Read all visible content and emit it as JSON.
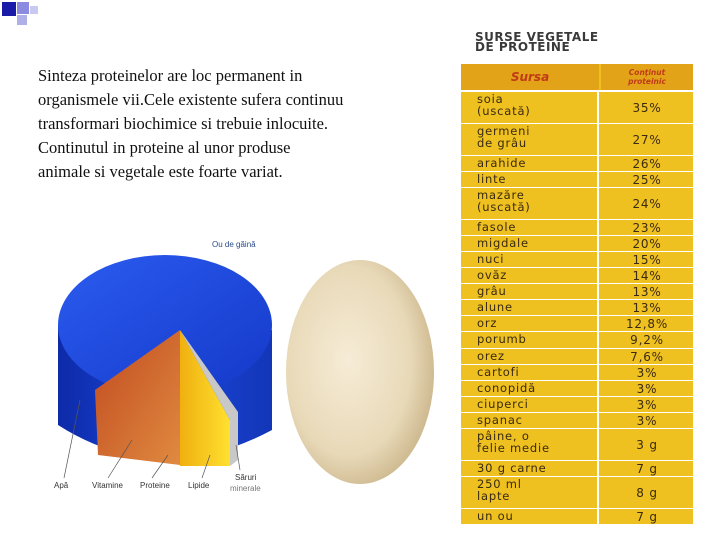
{
  "paragraph": {
    "lines": [
      "Sinteza proteinelor are loc permanent in",
      "organismele vii.Cele existente sufera continuu",
      "transformari biochimice si trebuie inlocuite.",
      "Continutul in proteine al unor produse",
      "animale si vegetale este foarte variat."
    ]
  },
  "figure": {
    "title": "Ou de găină",
    "labels": {
      "apa": "Apă",
      "vitamine": "Vitamine",
      "proteine": "Proteine",
      "lipide": "Lipide",
      "saruri_1": "Săruri",
      "saruri_2": "minerale"
    }
  },
  "table": {
    "title_line1": "SURSE VEGETALE",
    "title_line2": "DE PROTEINE",
    "col_source": "Sursa",
    "col_content_1": "Conţinut",
    "col_content_2": "proteinic",
    "rows": [
      {
        "name": [
          "soia",
          "(uscată)"
        ],
        "value": "35%"
      },
      {
        "name": [
          "germeni",
          "de grâu"
        ],
        "value": "27%"
      },
      {
        "name": [
          "arahide"
        ],
        "value": "26%"
      },
      {
        "name": [
          "linte"
        ],
        "value": "25%"
      },
      {
        "name": [
          "mazăre",
          "(uscată)"
        ],
        "value": "24%"
      },
      {
        "name": [
          "fasole"
        ],
        "value": "23%"
      },
      {
        "name": [
          "migdale"
        ],
        "value": "20%"
      },
      {
        "name": [
          "nuci"
        ],
        "value": "15%"
      },
      {
        "name": [
          "ovăz"
        ],
        "value": "14%"
      },
      {
        "name": [
          "grâu"
        ],
        "value": "13%"
      },
      {
        "name": [
          "alune"
        ],
        "value": "13%"
      },
      {
        "name": [
          "orz"
        ],
        "value": "12,8%"
      },
      {
        "name": [
          "porumb"
        ],
        "value": "9,2%"
      },
      {
        "name": [
          "orez"
        ],
        "value": "7,6%"
      },
      {
        "name": [
          "cartofi"
        ],
        "value": "3%"
      },
      {
        "name": [
          "conopidă"
        ],
        "value": "3%"
      },
      {
        "name": [
          "ciuperci"
        ],
        "value": "3%"
      },
      {
        "name": [
          "spanac"
        ],
        "value": "3%"
      },
      {
        "name": [
          "pâine, o",
          "felie medie"
        ],
        "value": "3 g"
      },
      {
        "name": [
          "30 g carne"
        ],
        "value": "7 g"
      },
      {
        "name": [
          "250 ml",
          "lapte"
        ],
        "value": "8 g"
      },
      {
        "name": [
          "un ou"
        ],
        "value": "7 g"
      }
    ]
  },
  "colors": {
    "bullet_blue": "#1a1aa8",
    "table_yellow": "#eec020",
    "header_orange": "#e2a318",
    "header_text": "#c03a18",
    "pie_blue": "#1f4fe0",
    "egg": "#e9dcc0"
  }
}
